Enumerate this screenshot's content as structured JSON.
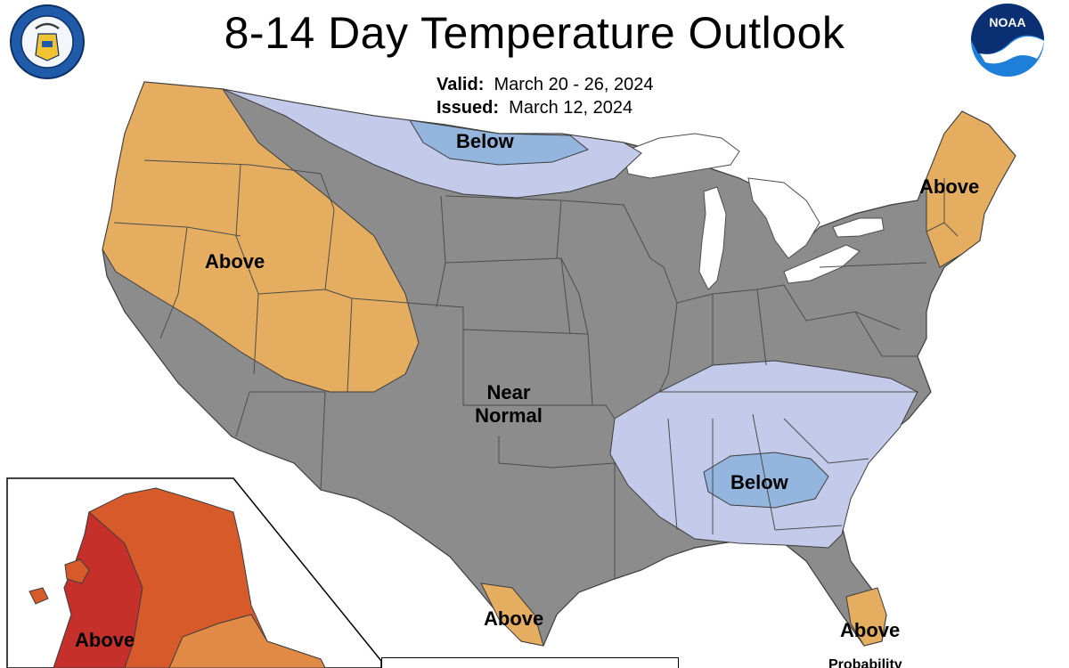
{
  "title": "8-14 Day Temperature Outlook",
  "valid_label": "Valid:",
  "valid_value": "March 20 - 26, 2024",
  "issued_label": "Issued:",
  "issued_value": "March 12, 2024",
  "regions": {
    "west_above": "Above",
    "north_below": "Below",
    "northeast_above": "Above",
    "near_normal_line1": "Near",
    "near_normal_line2": "Normal",
    "southeast_below": "Below",
    "texas_above": "Above",
    "florida_above": "Above",
    "alaska_above": "Above"
  },
  "legend_partial_text": "Probability",
  "logos": {
    "left": "department-of-commerce-seal",
    "right": "noaa-logo",
    "right_text": "NOAA"
  },
  "colors": {
    "near_normal": "#8c8c8c",
    "above_light": "#e4ad5f",
    "above_medium": "#e08a45",
    "above_strong": "#d65a2a",
    "above_strongest": "#c6302a",
    "below_light": "#c4cbea",
    "below_medium": "#93b5de",
    "water": "#ffffff",
    "state_lines": "#4d4d4d"
  }
}
